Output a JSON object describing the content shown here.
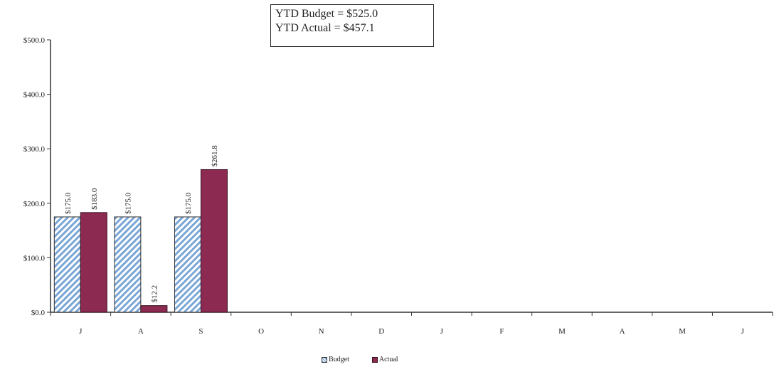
{
  "summary_box": {
    "line1": "YTD Budget = $525.0",
    "line2": "YTD Actual  = $457.1"
  },
  "colors": {
    "budget_stripe": "#7aa6d6",
    "actual_fill": "#8c2a52",
    "axis": "#333333"
  },
  "chart_data": {
    "type": "bar",
    "categories": [
      "J",
      "A",
      "S",
      "O",
      "N",
      "D",
      "J",
      "F",
      "M",
      "A",
      "M",
      "J"
    ],
    "series": [
      {
        "name": "Budget",
        "values": [
          175.0,
          175.0,
          175.0,
          null,
          null,
          null,
          null,
          null,
          null,
          null,
          null,
          null
        ],
        "labels": [
          "$175.0",
          "$175.0",
          "$175.0"
        ]
      },
      {
        "name": "Actual",
        "values": [
          183.0,
          12.2,
          261.8,
          null,
          null,
          null,
          null,
          null,
          null,
          null,
          null,
          null
        ],
        "labels": [
          "$183.0",
          "$12.2",
          "$261.8"
        ]
      }
    ],
    "yticks": [
      0,
      100,
      200,
      300,
      400,
      500
    ],
    "ytick_labels": [
      "$0.0",
      "$100.0",
      "$200.0",
      "$300.0",
      "$400.0",
      "$500.0"
    ],
    "ylim": [
      0,
      500
    ],
    "grid": false,
    "legend": "bottom-center",
    "title": "",
    "xlabel": "",
    "ylabel": ""
  }
}
